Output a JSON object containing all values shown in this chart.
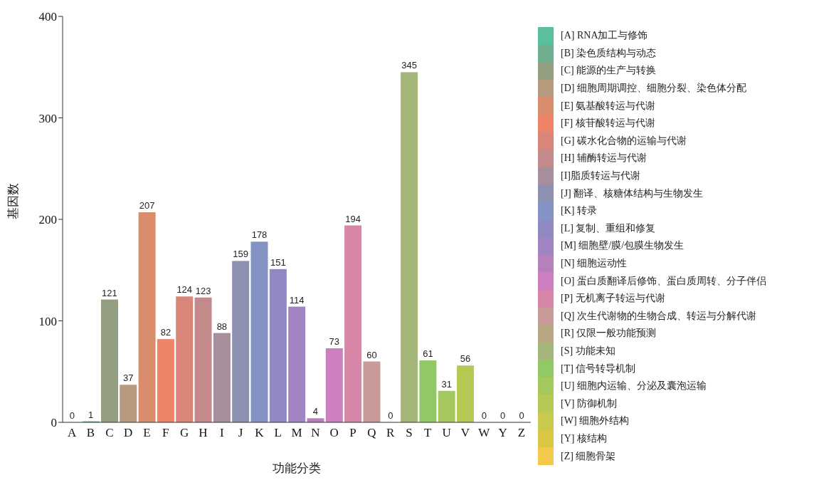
{
  "chart_data": {
    "type": "bar",
    "xlabel": "功能分类",
    "ylabel": "基因数",
    "categories": [
      "A",
      "B",
      "C",
      "D",
      "E",
      "F",
      "G",
      "H",
      "I",
      "J",
      "K",
      "L",
      "M",
      "N",
      "O",
      "P",
      "Q",
      "R",
      "S",
      "T",
      "U",
      "V",
      "W",
      "Y",
      "Z"
    ],
    "stacked": true,
    "data_labels": true,
    "legend": "right",
    "grid": false,
    "ylim": [
      0,
      400
    ],
    "yticks": [
      0,
      100,
      200,
      300,
      400
    ],
    "series": [
      {
        "name": "[A] RNA加工与修饰",
        "color": "#5bbf9c",
        "values": [
          0,
          null,
          null,
          null,
          null,
          null,
          null,
          null,
          null,
          null,
          null,
          null,
          null,
          null,
          null,
          null,
          null,
          null,
          null,
          null,
          null,
          null,
          null,
          null,
          null
        ]
      },
      {
        "name": "[B] 染色质结构与动态",
        "color": "#6fae8f",
        "values": [
          null,
          1,
          null,
          null,
          null,
          null,
          null,
          null,
          null,
          null,
          null,
          null,
          null,
          null,
          null,
          null,
          null,
          null,
          null,
          null,
          null,
          null,
          null,
          null,
          null
        ]
      },
      {
        "name": "[C] 能源的生产与转换",
        "color": "#939f80",
        "values": [
          null,
          null,
          121,
          null,
          null,
          null,
          null,
          null,
          null,
          null,
          null,
          null,
          null,
          null,
          null,
          null,
          null,
          null,
          null,
          null,
          null,
          null,
          null,
          null,
          null
        ]
      },
      {
        "name": "[D] 细胞周期调控、细胞分裂、染色体分配",
        "color": "#b59a7e",
        "values": [
          null,
          null,
          null,
          37,
          null,
          null,
          null,
          null,
          null,
          null,
          null,
          null,
          null,
          null,
          null,
          null,
          null,
          null,
          null,
          null,
          null,
          null,
          null,
          null,
          null
        ]
      },
      {
        "name": "[E] 氨基酸转运与代谢",
        "color": "#d98d6d",
        "values": [
          null,
          null,
          null,
          null,
          207,
          null,
          null,
          null,
          null,
          null,
          null,
          null,
          null,
          null,
          null,
          null,
          null,
          null,
          null,
          null,
          null,
          null,
          null,
          null,
          null
        ]
      },
      {
        "name": "[F] 核苷酸转运与代谢",
        "color": "#ee8467",
        "values": [
          null,
          null,
          null,
          null,
          null,
          82,
          null,
          null,
          null,
          null,
          null,
          null,
          null,
          null,
          null,
          null,
          null,
          null,
          null,
          null,
          null,
          null,
          null,
          null,
          null
        ]
      },
      {
        "name": "[G] 碳水化合物的运输与代谢",
        "color": "#d98578",
        "values": [
          null,
          null,
          null,
          null,
          null,
          null,
          124,
          null,
          null,
          null,
          null,
          null,
          null,
          null,
          null,
          null,
          null,
          null,
          null,
          null,
          null,
          null,
          null,
          null,
          null
        ]
      },
      {
        "name": "[H] 辅酶转运与代谢",
        "color": "#c28a8a",
        "values": [
          null,
          null,
          null,
          null,
          null,
          null,
          null,
          123,
          null,
          null,
          null,
          null,
          null,
          null,
          null,
          null,
          null,
          null,
          null,
          null,
          null,
          null,
          null,
          null,
          null
        ]
      },
      {
        "name": "[I]脂质转运与代谢",
        "color": "#a68e9d",
        "values": [
          null,
          null,
          null,
          null,
          null,
          null,
          null,
          null,
          88,
          null,
          null,
          null,
          null,
          null,
          null,
          null,
          null,
          null,
          null,
          null,
          null,
          null,
          null,
          null,
          null
        ]
      },
      {
        "name": "[J] 翻译、核糖体结构与生物发生",
        "color": "#8c91b0",
        "values": [
          null,
          null,
          null,
          null,
          null,
          null,
          null,
          null,
          null,
          159,
          null,
          null,
          null,
          null,
          null,
          null,
          null,
          null,
          null,
          null,
          null,
          null,
          null,
          null,
          null
        ]
      },
      {
        "name": "[K] 转录",
        "color": "#8493c4",
        "values": [
          null,
          null,
          null,
          null,
          null,
          null,
          null,
          null,
          null,
          null,
          178,
          null,
          null,
          null,
          null,
          null,
          null,
          null,
          null,
          null,
          null,
          null,
          null,
          null,
          null
        ]
      },
      {
        "name": "[L] 复制、重组和修复",
        "color": "#9189c2",
        "values": [
          null,
          null,
          null,
          null,
          null,
          null,
          null,
          null,
          null,
          null,
          null,
          151,
          null,
          null,
          null,
          null,
          null,
          null,
          null,
          null,
          null,
          null,
          null,
          null,
          null
        ]
      },
      {
        "name": "[M] 细胞壁/膜/包膜生物发生",
        "color": "#a185c2",
        "values": [
          null,
          null,
          null,
          null,
          null,
          null,
          null,
          null,
          null,
          null,
          null,
          null,
          114,
          null,
          null,
          null,
          null,
          null,
          null,
          null,
          null,
          null,
          null,
          null,
          null
        ]
      },
      {
        "name": "[N] 细胞运动性",
        "color": "#b680bc",
        "values": [
          null,
          null,
          null,
          null,
          null,
          null,
          null,
          null,
          null,
          null,
          null,
          null,
          null,
          4,
          null,
          null,
          null,
          null,
          null,
          null,
          null,
          null,
          null,
          null,
          null
        ]
      },
      {
        "name": "[O] 蛋白质翻译后修饰、蛋白质周转、分子伴侣",
        "color": "#cd7fbf",
        "values": [
          null,
          null,
          null,
          null,
          null,
          null,
          null,
          null,
          null,
          null,
          null,
          null,
          null,
          null,
          73,
          null,
          null,
          null,
          null,
          null,
          null,
          null,
          null,
          null,
          null
        ]
      },
      {
        "name": "[P] 无机离子转运与代谢",
        "color": "#d886a8",
        "values": [
          null,
          null,
          null,
          null,
          null,
          null,
          null,
          null,
          null,
          null,
          null,
          null,
          null,
          null,
          null,
          194,
          null,
          null,
          null,
          null,
          null,
          null,
          null,
          null,
          null
        ]
      },
      {
        "name": "[Q] 次生代谢物的生物合成、转运与分解代谢",
        "color": "#c99a98",
        "values": [
          null,
          null,
          null,
          null,
          null,
          null,
          null,
          null,
          null,
          null,
          null,
          null,
          null,
          null,
          null,
          null,
          60,
          null,
          null,
          null,
          null,
          null,
          null,
          null,
          null
        ]
      },
      {
        "name": "[R] 仅限一般功能预测",
        "color": "#b8a682",
        "values": [
          null,
          null,
          null,
          null,
          null,
          null,
          null,
          null,
          null,
          null,
          null,
          null,
          null,
          null,
          null,
          null,
          null,
          0,
          null,
          null,
          null,
          null,
          null,
          null,
          null
        ]
      },
      {
        "name": "[S] 功能未知",
        "color": "#a5b67a",
        "values": [
          null,
          null,
          null,
          null,
          null,
          null,
          null,
          null,
          null,
          null,
          null,
          null,
          null,
          null,
          null,
          null,
          null,
          null,
          345,
          null,
          null,
          null,
          null,
          null,
          null
        ]
      },
      {
        "name": "[T] 信号转导机制",
        "color": "#92c866",
        "values": [
          null,
          null,
          null,
          null,
          null,
          null,
          null,
          null,
          null,
          null,
          null,
          null,
          null,
          null,
          null,
          null,
          null,
          null,
          null,
          61,
          null,
          null,
          null,
          null,
          null
        ]
      },
      {
        "name": "[U] 细胞内运输、分泌及囊泡运输",
        "color": "#a5c85e",
        "values": [
          null,
          null,
          null,
          null,
          null,
          null,
          null,
          null,
          null,
          null,
          null,
          null,
          null,
          null,
          null,
          null,
          null,
          null,
          null,
          null,
          31,
          null,
          null,
          null,
          null
        ]
      },
      {
        "name": "[V] 防御机制",
        "color": "#b8c854",
        "values": [
          null,
          null,
          null,
          null,
          null,
          null,
          null,
          null,
          null,
          null,
          null,
          null,
          null,
          null,
          null,
          null,
          null,
          null,
          null,
          null,
          null,
          56,
          null,
          null,
          null
        ]
      },
      {
        "name": "[W] 细胞外结构",
        "color": "#c9c94d",
        "values": [
          null,
          null,
          null,
          null,
          null,
          null,
          null,
          null,
          null,
          null,
          null,
          null,
          null,
          null,
          null,
          null,
          null,
          null,
          null,
          null,
          null,
          null,
          0,
          null,
          null
        ]
      },
      {
        "name": "[Y] 核结构",
        "color": "#dbc746",
        "values": [
          null,
          null,
          null,
          null,
          null,
          null,
          null,
          null,
          null,
          null,
          null,
          null,
          null,
          null,
          null,
          null,
          null,
          null,
          null,
          null,
          null,
          null,
          null,
          0,
          null
        ]
      },
      {
        "name": "[Z] 细胞骨架",
        "color": "#f2c94a",
        "values": [
          null,
          null,
          null,
          null,
          null,
          null,
          null,
          null,
          null,
          null,
          null,
          null,
          null,
          null,
          null,
          null,
          null,
          null,
          null,
          null,
          null,
          null,
          null,
          null,
          0
        ]
      }
    ]
  }
}
